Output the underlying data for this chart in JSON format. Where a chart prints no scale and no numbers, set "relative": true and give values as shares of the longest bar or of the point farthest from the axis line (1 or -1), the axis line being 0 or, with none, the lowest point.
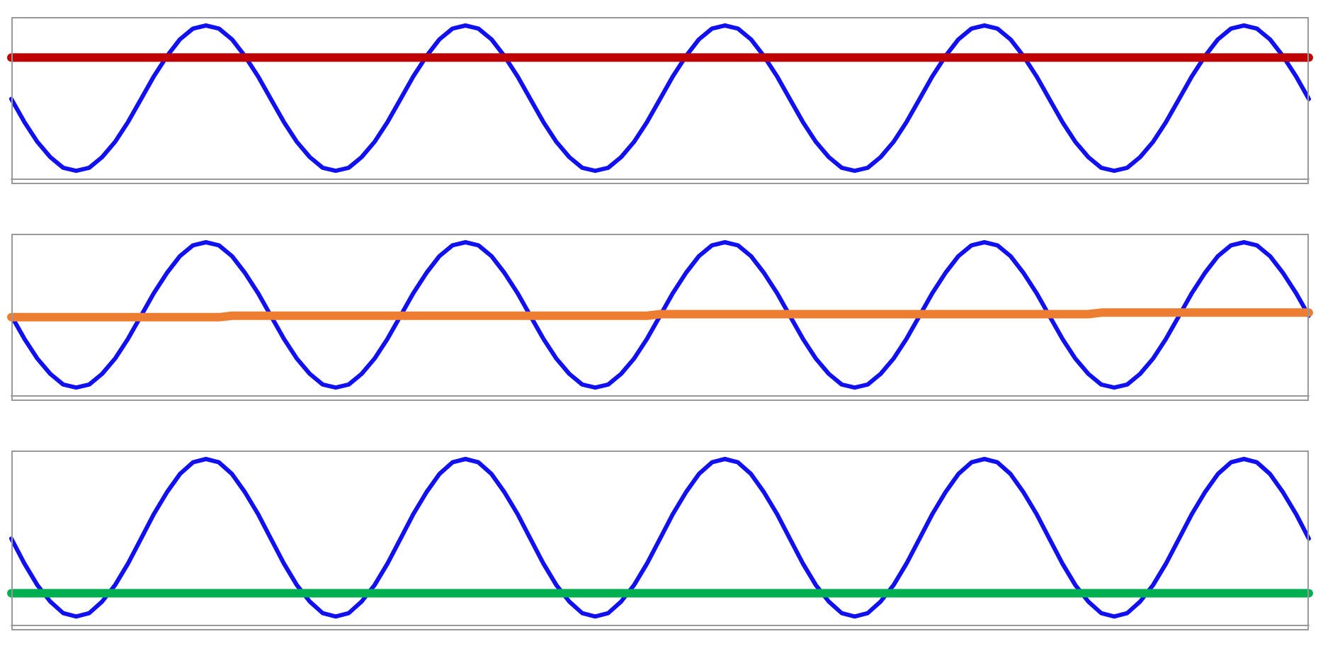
{
  "chart_data": [
    {
      "type": "line",
      "relative": true,
      "marker": "none",
      "categories": [
        null,
        null,
        null,
        null,
        null,
        null,
        null,
        null,
        null,
        null,
        null,
        null,
        null,
        null,
        null,
        null,
        null,
        null,
        null,
        null,
        null,
        null,
        null,
        null,
        null,
        null,
        null,
        null,
        null,
        null,
        null,
        null,
        null,
        null,
        null,
        null,
        null,
        null,
        null,
        null,
        null,
        null,
        null,
        null,
        null,
        null,
        null,
        null,
        null,
        null,
        null,
        null,
        null,
        null,
        null,
        null,
        null,
        null,
        null,
        null,
        null,
        null,
        null,
        null,
        null,
        null,
        null,
        null,
        null,
        null,
        null,
        null,
        null,
        null,
        null,
        null,
        null,
        null,
        null,
        null,
        null,
        null,
        null,
        null,
        null,
        null,
        null,
        null,
        null,
        null,
        null,
        null,
        null,
        null,
        null,
        null,
        null,
        null,
        null,
        null,
        null
      ],
      "series": [
        {
          "color": "#1010f0",
          "values": [
            0.52,
            0.37,
            0.24,
            0.14,
            0.07,
            0.05,
            0.07,
            0.14,
            0.24,
            0.37,
            0.52,
            0.67,
            0.8,
            0.91,
            0.98,
            1,
            0.98,
            0.91,
            0.8,
            0.67,
            0.52,
            0.37,
            0.24,
            0.14,
            0.07,
            0.05,
            0.07,
            0.14,
            0.24,
            0.37,
            0.52,
            0.67,
            0.8,
            0.91,
            0.98,
            1,
            0.98,
            0.91,
            0.8,
            0.67,
            0.52,
            0.37,
            0.24,
            0.14,
            0.07,
            0.05,
            0.07,
            0.14,
            0.24,
            0.37,
            0.52,
            0.67,
            0.8,
            0.91,
            0.98,
            1,
            0.98,
            0.91,
            0.8,
            0.67,
            0.52,
            0.37,
            0.24,
            0.14,
            0.07,
            0.05,
            0.07,
            0.14,
            0.24,
            0.37,
            0.52,
            0.67,
            0.8,
            0.91,
            0.98,
            1,
            0.98,
            0.91,
            0.8,
            0.67,
            0.52,
            0.37,
            0.24,
            0.14,
            0.07,
            0.05,
            0.07,
            0.14,
            0.24,
            0.37,
            0.52,
            0.67,
            0.8,
            0.91,
            0.98,
            1,
            0.98,
            0.91,
            0.8,
            0.67,
            0.52
          ]
        },
        {
          "color": "#c00000",
          "values": [
            0.79,
            0.79,
            0.79,
            0.79,
            0.79,
            0.79,
            0.79,
            0.79,
            0.79,
            0.79,
            0.79,
            0.79,
            0.79,
            0.79,
            0.79,
            0.79,
            0.79,
            0.79,
            0.79,
            0.79,
            0.79,
            0.79,
            0.79,
            0.79,
            0.79,
            0.79,
            0.79,
            0.79,
            0.79,
            0.79,
            0.79,
            0.79,
            0.79,
            0.79,
            0.79,
            0.79,
            0.79,
            0.79,
            0.79,
            0.79,
            0.79,
            0.79,
            0.79,
            0.79,
            0.79,
            0.79,
            0.79,
            0.79,
            0.79,
            0.79,
            0.79,
            0.79,
            0.79,
            0.79,
            0.79,
            0.79,
            0.79,
            0.79,
            0.79,
            0.79,
            0.79,
            0.79,
            0.79,
            0.79,
            0.79,
            0.79,
            0.79,
            0.79,
            0.79,
            0.79,
            0.79,
            0.79,
            0.79,
            0.79,
            0.79,
            0.79,
            0.79,
            0.79,
            0.79,
            0.79,
            0.79,
            0.79,
            0.79,
            0.79,
            0.79,
            0.79,
            0.79,
            0.79,
            0.79,
            0.79,
            0.79,
            0.79,
            0.79,
            0.79,
            0.79,
            0.79,
            0.79,
            0.79,
            0.79,
            0.79,
            0.79
          ]
        }
      ]
    },
    {
      "type": "line",
      "relative": true,
      "marker": "none",
      "categories": [
        null,
        null,
        null,
        null,
        null,
        null,
        null,
        null,
        null,
        null,
        null,
        null,
        null,
        null,
        null,
        null,
        null,
        null,
        null,
        null,
        null,
        null,
        null,
        null,
        null,
        null,
        null,
        null,
        null,
        null,
        null,
        null,
        null,
        null,
        null,
        null,
        null,
        null,
        null,
        null,
        null,
        null,
        null,
        null,
        null,
        null,
        null,
        null,
        null,
        null,
        null,
        null,
        null,
        null,
        null,
        null,
        null,
        null,
        null,
        null,
        null,
        null,
        null,
        null,
        null,
        null,
        null,
        null,
        null,
        null,
        null,
        null,
        null,
        null,
        null,
        null,
        null,
        null,
        null,
        null,
        null,
        null,
        null,
        null,
        null,
        null,
        null,
        null,
        null,
        null,
        null,
        null,
        null,
        null,
        null,
        null,
        null,
        null,
        null,
        null,
        null
      ],
      "series": [
        {
          "color": "#1010f0",
          "values": [
            0.52,
            0.37,
            0.24,
            0.14,
            0.07,
            0.05,
            0.07,
            0.14,
            0.24,
            0.37,
            0.52,
            0.67,
            0.8,
            0.91,
            0.98,
            1,
            0.98,
            0.91,
            0.8,
            0.67,
            0.52,
            0.37,
            0.24,
            0.14,
            0.07,
            0.05,
            0.07,
            0.14,
            0.24,
            0.37,
            0.52,
            0.67,
            0.8,
            0.91,
            0.98,
            1,
            0.98,
            0.91,
            0.8,
            0.67,
            0.52,
            0.37,
            0.24,
            0.14,
            0.07,
            0.05,
            0.07,
            0.14,
            0.24,
            0.37,
            0.52,
            0.67,
            0.8,
            0.91,
            0.98,
            1,
            0.98,
            0.91,
            0.8,
            0.67,
            0.52,
            0.37,
            0.24,
            0.14,
            0.07,
            0.05,
            0.07,
            0.14,
            0.24,
            0.37,
            0.52,
            0.67,
            0.8,
            0.91,
            0.98,
            1,
            0.98,
            0.91,
            0.8,
            0.67,
            0.52,
            0.37,
            0.24,
            0.14,
            0.07,
            0.05,
            0.07,
            0.14,
            0.24,
            0.37,
            0.52,
            0.67,
            0.8,
            0.91,
            0.98,
            1,
            0.98,
            0.91,
            0.8,
            0.67,
            0.52
          ]
        },
        {
          "color": "#ed7d31",
          "values": [
            0.51,
            0.51,
            0.51,
            0.51,
            0.51,
            0.51,
            0.51,
            0.51,
            0.51,
            0.51,
            0.51,
            0.51,
            0.51,
            0.51,
            0.51,
            0.51,
            0.51,
            0.52,
            0.52,
            0.52,
            0.52,
            0.52,
            0.52,
            0.52,
            0.52,
            0.52,
            0.52,
            0.52,
            0.52,
            0.52,
            0.52,
            0.52,
            0.52,
            0.52,
            0.52,
            0.52,
            0.52,
            0.52,
            0.52,
            0.52,
            0.52,
            0.52,
            0.52,
            0.52,
            0.52,
            0.52,
            0.52,
            0.52,
            0.52,
            0.52,
            0.53,
            0.53,
            0.53,
            0.53,
            0.53,
            0.53,
            0.53,
            0.53,
            0.53,
            0.53,
            0.53,
            0.53,
            0.53,
            0.53,
            0.53,
            0.53,
            0.53,
            0.53,
            0.53,
            0.53,
            0.53,
            0.53,
            0.53,
            0.53,
            0.53,
            0.53,
            0.53,
            0.53,
            0.53,
            0.53,
            0.53,
            0.53,
            0.53,
            0.53,
            0.54,
            0.54,
            0.54,
            0.54,
            0.54,
            0.54,
            0.54,
            0.54,
            0.54,
            0.54,
            0.54,
            0.54,
            0.54,
            0.54,
            0.54,
            0.54,
            0.54
          ]
        }
      ]
    },
    {
      "type": "line",
      "relative": true,
      "marker": "none",
      "categories": [
        null,
        null,
        null,
        null,
        null,
        null,
        null,
        null,
        null,
        null,
        null,
        null,
        null,
        null,
        null,
        null,
        null,
        null,
        null,
        null,
        null,
        null,
        null,
        null,
        null,
        null,
        null,
        null,
        null,
        null,
        null,
        null,
        null,
        null,
        null,
        null,
        null,
        null,
        null,
        null,
        null,
        null,
        null,
        null,
        null,
        null,
        null,
        null,
        null,
        null,
        null,
        null,
        null,
        null,
        null,
        null,
        null,
        null,
        null,
        null,
        null,
        null,
        null,
        null,
        null,
        null,
        null,
        null,
        null,
        null,
        null,
        null,
        null,
        null,
        null,
        null,
        null,
        null,
        null,
        null,
        null,
        null,
        null,
        null,
        null,
        null,
        null,
        null,
        null,
        null,
        null,
        null,
        null,
        null,
        null,
        null,
        null,
        null,
        null,
        null,
        null
      ],
      "series": [
        {
          "color": "#1010f0",
          "values": [
            0.52,
            0.37,
            0.24,
            0.14,
            0.07,
            0.05,
            0.07,
            0.14,
            0.24,
            0.37,
            0.52,
            0.67,
            0.8,
            0.91,
            0.98,
            1,
            0.98,
            0.91,
            0.8,
            0.67,
            0.52,
            0.37,
            0.24,
            0.14,
            0.07,
            0.05,
            0.07,
            0.14,
            0.24,
            0.37,
            0.52,
            0.67,
            0.8,
            0.91,
            0.98,
            1,
            0.98,
            0.91,
            0.8,
            0.67,
            0.52,
            0.37,
            0.24,
            0.14,
            0.07,
            0.05,
            0.07,
            0.14,
            0.24,
            0.37,
            0.52,
            0.67,
            0.8,
            0.91,
            0.98,
            1,
            0.98,
            0.91,
            0.8,
            0.67,
            0.52,
            0.37,
            0.24,
            0.14,
            0.07,
            0.05,
            0.07,
            0.14,
            0.24,
            0.37,
            0.52,
            0.67,
            0.8,
            0.91,
            0.98,
            1,
            0.98,
            0.91,
            0.8,
            0.67,
            0.52,
            0.37,
            0.24,
            0.14,
            0.07,
            0.05,
            0.07,
            0.14,
            0.24,
            0.37,
            0.52,
            0.67,
            0.8,
            0.91,
            0.98,
            1,
            0.98,
            0.91,
            0.8,
            0.67,
            0.52
          ]
        },
        {
          "color": "#00b050",
          "values": [
            0.19,
            0.19,
            0.19,
            0.19,
            0.19,
            0.19,
            0.19,
            0.19,
            0.19,
            0.19,
            0.19,
            0.19,
            0.19,
            0.19,
            0.19,
            0.19,
            0.19,
            0.19,
            0.19,
            0.19,
            0.19,
            0.19,
            0.19,
            0.19,
            0.19,
            0.19,
            0.19,
            0.19,
            0.19,
            0.19,
            0.19,
            0.19,
            0.19,
            0.19,
            0.19,
            0.19,
            0.19,
            0.19,
            0.19,
            0.19,
            0.19,
            0.19,
            0.19,
            0.19,
            0.19,
            0.19,
            0.19,
            0.19,
            0.19,
            0.19,
            0.19,
            0.19,
            0.19,
            0.19,
            0.19,
            0.19,
            0.19,
            0.19,
            0.19,
            0.19,
            0.19,
            0.19,
            0.19,
            0.19,
            0.19,
            0.19,
            0.19,
            0.19,
            0.19,
            0.19,
            0.19,
            0.19,
            0.19,
            0.19,
            0.19,
            0.19,
            0.19,
            0.19,
            0.19,
            0.19,
            0.19,
            0.19,
            0.19,
            0.19,
            0.19,
            0.19,
            0.19,
            0.19,
            0.19,
            0.19,
            0.19,
            0.19,
            0.19,
            0.19,
            0.19,
            0.19,
            0.19,
            0.19,
            0.19,
            0.19,
            0.19
          ]
        }
      ]
    }
  ]
}
